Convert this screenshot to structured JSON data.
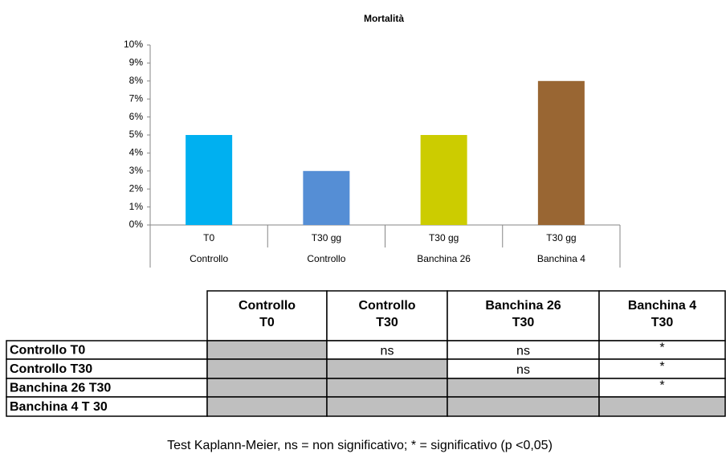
{
  "chart_data": {
    "type": "bar",
    "title": "Mortalità",
    "categories": [
      "T0",
      "T30 gg",
      "T30 gg",
      "T30 gg"
    ],
    "category_groups": [
      "Controllo",
      "Controllo",
      "Banchina 26",
      "Banchina 4"
    ],
    "values": [
      5,
      3,
      5,
      8
    ],
    "colors": [
      "#00b0f0",
      "#558ed5",
      "#cccc00",
      "#996633"
    ],
    "ylim": [
      0,
      10
    ],
    "yticks": [
      {
        "value": 0,
        "label": "0%"
      },
      {
        "value": 1,
        "label": "1%"
      },
      {
        "value": 2,
        "label": "2%"
      },
      {
        "value": 3,
        "label": "3%"
      },
      {
        "value": 4,
        "label": "4%"
      },
      {
        "value": 5,
        "label": "5%"
      },
      {
        "value": 6,
        "label": "6%"
      },
      {
        "value": 7,
        "label": "7%"
      },
      {
        "value": 8,
        "label": "8%"
      },
      {
        "value": 9,
        "label": "9%"
      },
      {
        "value": 10,
        "label": "10%"
      }
    ],
    "grid": false
  },
  "table": {
    "columns": [
      [
        "Controllo",
        "T0"
      ],
      [
        "Controllo",
        "T30"
      ],
      [
        "Banchina 26",
        "T30"
      ],
      [
        "Banchina 4",
        "T30"
      ]
    ],
    "rows": [
      {
        "label": "Controllo T0",
        "cells": [
          null,
          "ns",
          "ns",
          "*"
        ]
      },
      {
        "label": "Controllo T30",
        "cells": [
          null,
          null,
          "ns",
          "*"
        ]
      },
      {
        "label": "Banchina 26 T30",
        "cells": [
          null,
          null,
          null,
          "*"
        ]
      },
      {
        "label": "Banchina 4 T 30",
        "cells": [
          null,
          null,
          null,
          null
        ]
      }
    ],
    "note": "Test Kaplann-Meier, ns = non significativo; * = significativo (p <0,05)"
  }
}
